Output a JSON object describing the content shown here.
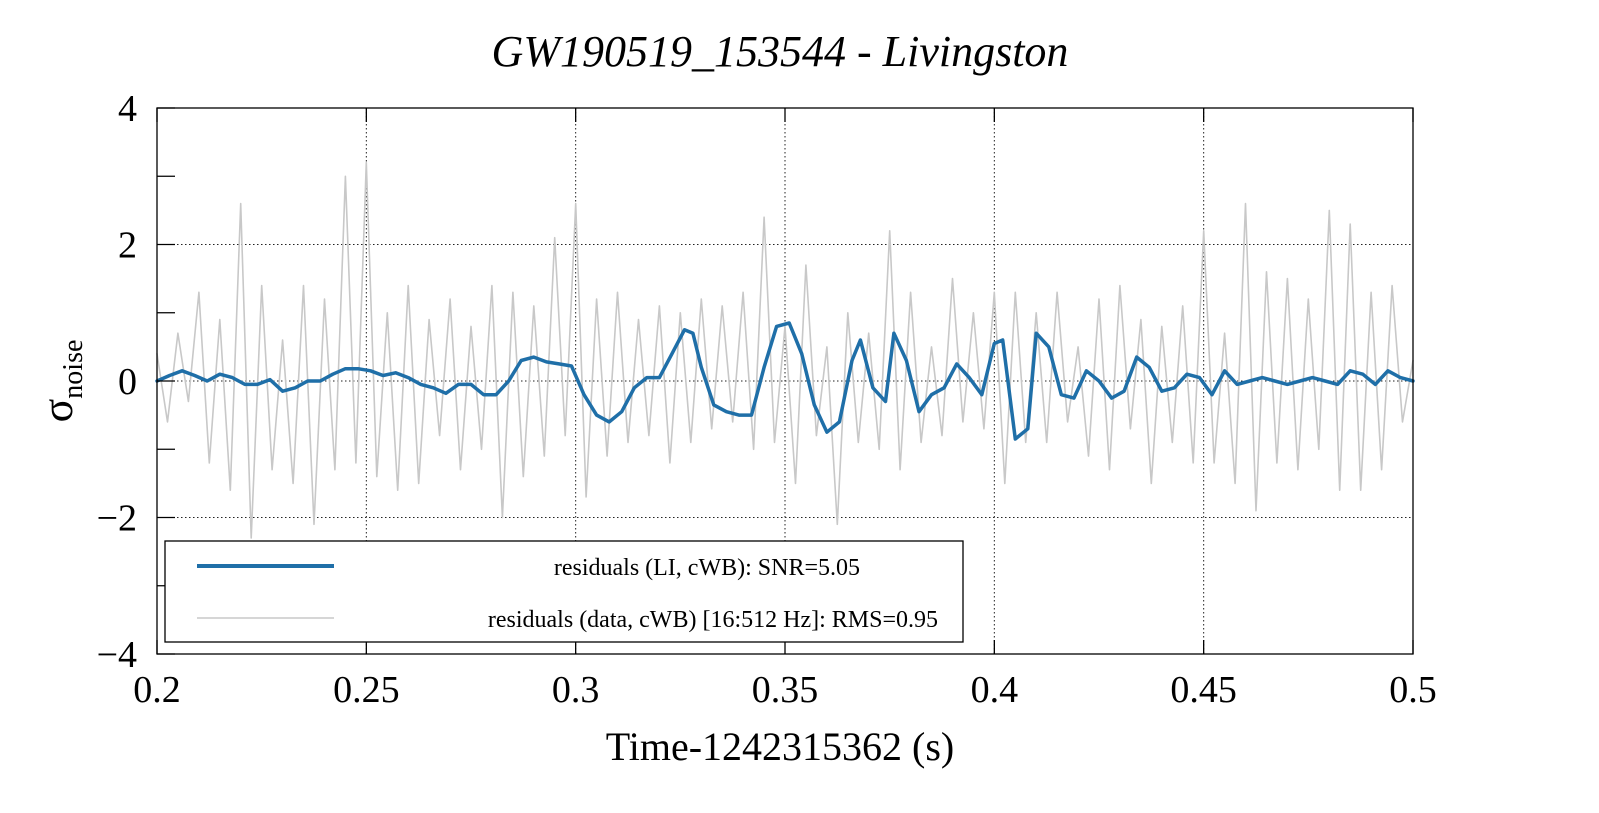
{
  "chart_data": {
    "type": "line",
    "title": "GW190519_153544 - Livingston",
    "xlabel": "Time-1242315362 (s)",
    "ylabel": {
      "symbol": "σ",
      "subscript": "noise"
    },
    "xlim": [
      0.2,
      0.5
    ],
    "ylim": [
      -4,
      4
    ],
    "x_ticks": [
      0.2,
      0.25,
      0.3,
      0.35,
      0.4,
      0.45,
      0.5
    ],
    "x_tick_labels": [
      "0.2",
      "0.25",
      "0.3",
      "0.35",
      "0.4",
      "0.45",
      "0.5"
    ],
    "y_ticks": [
      -4,
      -2,
      0,
      2,
      4
    ],
    "y_tick_labels": [
      "−4",
      "−2",
      "0",
      "2",
      "4"
    ],
    "y_minor_ticks": [
      -3,
      -1,
      1,
      3
    ],
    "grid": true,
    "legend_position": "bottom-left",
    "series": [
      {
        "name": "residuals (LI, cWB): SNR=5.05",
        "color": "#1f6fa8",
        "x": [
          0.2,
          0.203,
          0.206,
          0.209,
          0.212,
          0.215,
          0.218,
          0.221,
          0.224,
          0.227,
          0.23,
          0.233,
          0.236,
          0.239,
          0.242,
          0.245,
          0.248,
          0.251,
          0.254,
          0.257,
          0.26,
          0.263,
          0.266,
          0.269,
          0.272,
          0.275,
          0.278,
          0.281,
          0.284,
          0.287,
          0.29,
          0.293,
          0.296,
          0.299,
          0.302,
          0.305,
          0.308,
          0.311,
          0.314,
          0.317,
          0.32,
          0.323,
          0.326,
          0.328,
          0.33,
          0.333,
          0.336,
          0.339,
          0.342,
          0.345,
          0.348,
          0.351,
          0.354,
          0.357,
          0.36,
          0.363,
          0.366,
          0.368,
          0.371,
          0.374,
          0.376,
          0.379,
          0.382,
          0.385,
          0.388,
          0.391,
          0.394,
          0.397,
          0.4,
          0.402,
          0.405,
          0.408,
          0.41,
          0.413,
          0.416,
          0.419,
          0.422,
          0.425,
          0.428,
          0.431,
          0.434,
          0.437,
          0.44,
          0.443,
          0.446,
          0.449,
          0.452,
          0.455,
          0.458,
          0.461,
          0.464,
          0.467,
          0.47,
          0.473,
          0.476,
          0.479,
          0.482,
          0.485,
          0.488,
          0.491,
          0.494,
          0.497,
          0.5
        ],
        "y": [
          0,
          0.08,
          0.15,
          0.08,
          0.0,
          0.1,
          0.05,
          -0.05,
          -0.05,
          0.02,
          -0.15,
          -0.1,
          0.0,
          0.0,
          0.1,
          0.18,
          0.18,
          0.15,
          0.08,
          0.12,
          0.05,
          -0.05,
          -0.1,
          -0.18,
          -0.05,
          -0.05,
          -0.2,
          -0.2,
          0.0,
          0.3,
          0.35,
          0.28,
          0.25,
          0.22,
          -0.2,
          -0.5,
          -0.6,
          -0.45,
          -0.1,
          0.05,
          0.05,
          0.4,
          0.75,
          0.7,
          0.2,
          -0.35,
          -0.45,
          -0.5,
          -0.5,
          0.2,
          0.8,
          0.85,
          0.4,
          -0.35,
          -0.75,
          -0.6,
          0.3,
          0.6,
          -0.1,
          -0.3,
          0.7,
          0.3,
          -0.45,
          -0.2,
          -0.1,
          0.25,
          0.05,
          -0.2,
          0.55,
          0.6,
          -0.85,
          -0.7,
          0.7,
          0.5,
          -0.2,
          -0.25,
          0.15,
          0.0,
          -0.25,
          -0.15,
          0.35,
          0.2,
          -0.15,
          -0.1,
          0.1,
          0.05,
          -0.2,
          0.15,
          -0.05,
          0.0,
          0.05,
          0.0,
          -0.05,
          0.0,
          0.05,
          0.0,
          -0.05,
          0.15,
          0.1,
          -0.05,
          0.15,
          0.05,
          0.0
        ]
      },
      {
        "name": "residuals (data, cWB) [16:512 Hz]: RMS=0.95",
        "color": "#c8c8c8",
        "x": [
          0.2,
          0.2025,
          0.205,
          0.2075,
          0.21,
          0.2125,
          0.215,
          0.2175,
          0.22,
          0.2225,
          0.225,
          0.2275,
          0.23,
          0.2325,
          0.235,
          0.2375,
          0.24,
          0.2425,
          0.245,
          0.2475,
          0.25,
          0.2525,
          0.255,
          0.2575,
          0.26,
          0.2625,
          0.265,
          0.2675,
          0.27,
          0.2725,
          0.275,
          0.2775,
          0.28,
          0.2825,
          0.285,
          0.2875,
          0.29,
          0.2925,
          0.295,
          0.2975,
          0.3,
          0.3025,
          0.305,
          0.3075,
          0.31,
          0.3125,
          0.315,
          0.3175,
          0.32,
          0.3225,
          0.325,
          0.3275,
          0.33,
          0.3325,
          0.335,
          0.3375,
          0.34,
          0.3425,
          0.345,
          0.3475,
          0.35,
          0.3525,
          0.355,
          0.3575,
          0.36,
          0.3625,
          0.365,
          0.3675,
          0.37,
          0.3725,
          0.375,
          0.3775,
          0.38,
          0.3825,
          0.385,
          0.3875,
          0.39,
          0.3925,
          0.395,
          0.3975,
          0.4,
          0.4025,
          0.405,
          0.4075,
          0.41,
          0.4125,
          0.415,
          0.4175,
          0.42,
          0.4225,
          0.425,
          0.4275,
          0.43,
          0.4325,
          0.435,
          0.4375,
          0.44,
          0.4425,
          0.445,
          0.4475,
          0.45,
          0.4525,
          0.455,
          0.4575,
          0.46,
          0.4625,
          0.465,
          0.4675,
          0.47,
          0.4725,
          0.475,
          0.4775,
          0.48,
          0.4825,
          0.485,
          0.4875,
          0.49,
          0.4925,
          0.495,
          0.4975,
          0.5
        ],
        "y": [
          0.4,
          -0.6,
          0.7,
          -0.3,
          1.3,
          -1.2,
          0.9,
          -1.6,
          2.6,
          -2.3,
          1.4,
          -1.3,
          0.6,
          -1.5,
          1.4,
          -2.1,
          1.2,
          -1.3,
          3.0,
          -1.2,
          3.2,
          -1.4,
          1.0,
          -1.6,
          1.4,
          -1.5,
          0.9,
          -0.8,
          1.2,
          -1.3,
          0.8,
          -1.0,
          1.4,
          -2.0,
          1.3,
          -1.4,
          1.1,
          -1.1,
          2.1,
          -0.8,
          2.6,
          -1.7,
          1.2,
          -1.1,
          1.3,
          -0.9,
          0.9,
          -0.8,
          1.1,
          -1.2,
          1.0,
          -0.9,
          1.2,
          -0.7,
          1.1,
          -0.6,
          1.3,
          -1.0,
          2.4,
          -0.9,
          0.8,
          -1.5,
          1.7,
          -0.8,
          0.5,
          -2.1,
          1.0,
          -0.9,
          0.7,
          -1.0,
          2.2,
          -1.3,
          1.3,
          -0.9,
          0.5,
          -0.8,
          1.5,
          -0.6,
          1.0,
          -0.7,
          1.3,
          -1.5,
          1.3,
          -0.9,
          1.0,
          -0.9,
          1.3,
          -0.6,
          0.5,
          -1.1,
          1.2,
          -1.3,
          1.4,
          -0.7,
          0.9,
          -1.5,
          0.8,
          -0.9,
          1.1,
          -1.2,
          2.2,
          -1.2,
          0.7,
          -1.5,
          2.6,
          -1.9,
          1.6,
          -1.2,
          1.5,
          -1.3,
          1.2,
          -1.0,
          2.5,
          -1.6,
          2.3,
          -1.6,
          1.3,
          -1.3,
          1.4,
          -0.6,
          0.3
        ]
      }
    ]
  }
}
